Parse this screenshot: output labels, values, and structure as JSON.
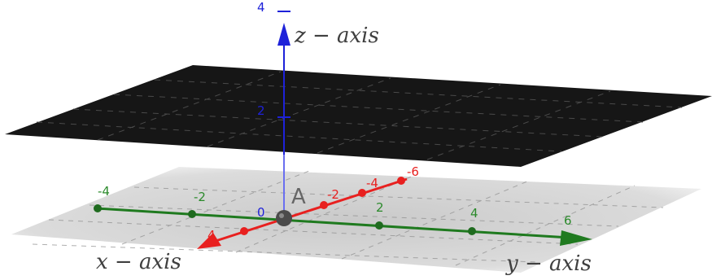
{
  "axes": {
    "x": {
      "title": "x − axis",
      "color": "#e8201f",
      "tick_labels": [
        "4",
        "-2",
        "-4",
        "-6"
      ]
    },
    "y": {
      "title": "y − axis",
      "color": "#1f7a1f",
      "tick_labels": [
        "-4",
        "-2",
        "2",
        "4",
        "6"
      ]
    },
    "z": {
      "title": "z − axis",
      "color": "#1e22d9",
      "tick_labels": [
        "2",
        "4"
      ]
    }
  },
  "origin_label": "0",
  "point_label": "A",
  "plane_color": "#161616",
  "floor_color": "#c9c9c9"
}
